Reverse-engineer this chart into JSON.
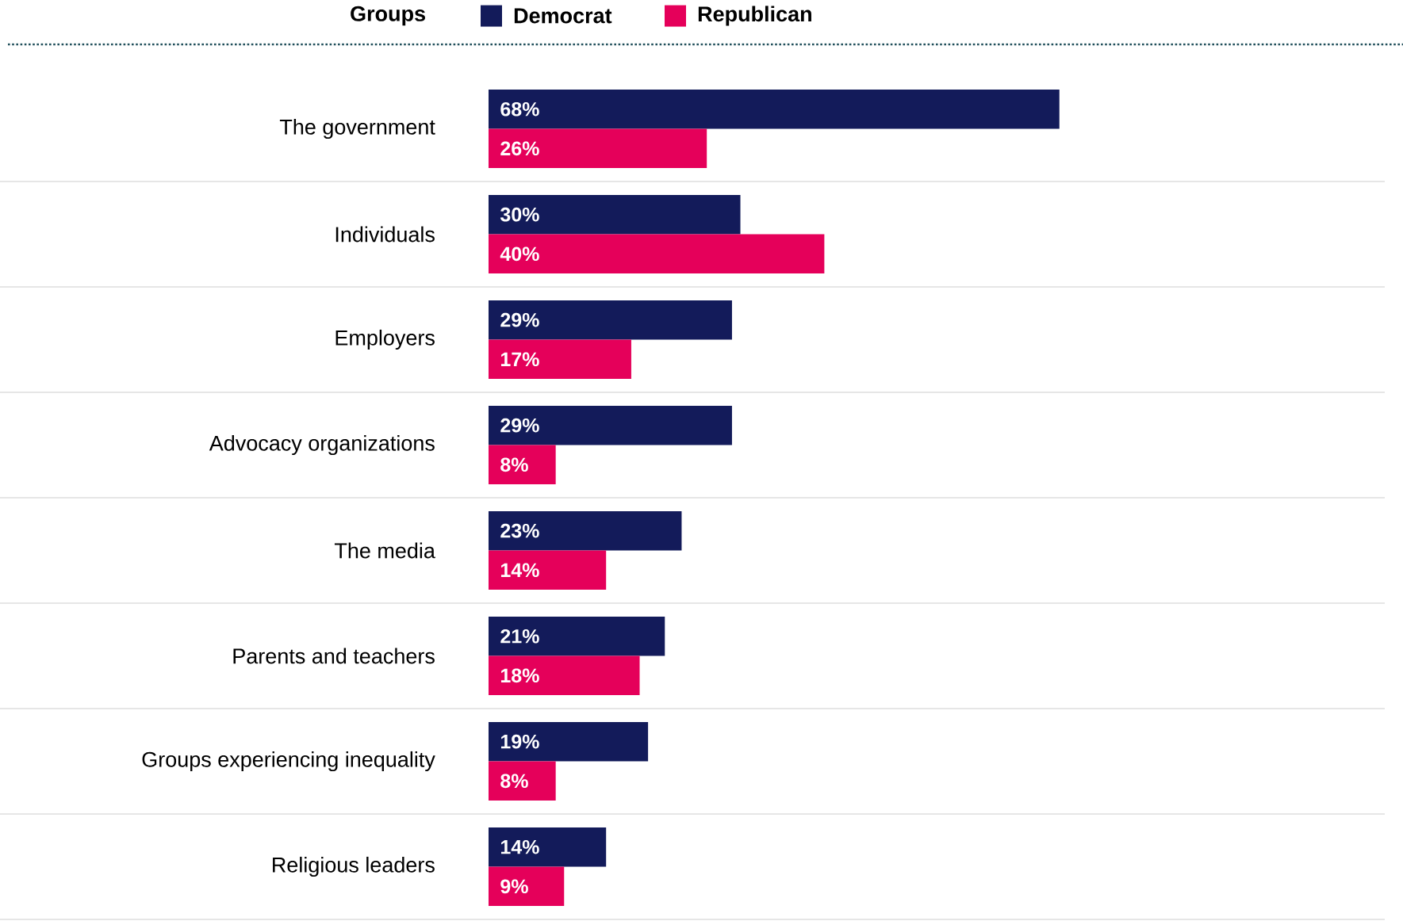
{
  "chart_data": {
    "type": "bar",
    "orientation": "horizontal",
    "legend_title": "Groups",
    "legend": "top",
    "categories": [
      "The government",
      "Individuals",
      "Employers",
      "Advocacy organizations",
      "The media",
      "Parents and teachers",
      "Groups experiencing inequality",
      "Religious leaders"
    ],
    "series": [
      {
        "name": "Democrat",
        "color": "#131b5a",
        "values": [
          68,
          30,
          29,
          29,
          23,
          21,
          19,
          14
        ],
        "value_labels": [
          "68%",
          "30%",
          "29%",
          "29%",
          "23%",
          "21%",
          "19%",
          "14%"
        ]
      },
      {
        "name": "Republican",
        "color": "#e5005a",
        "values": [
          26,
          40,
          17,
          8,
          14,
          18,
          8,
          9
        ],
        "value_labels": [
          "26%",
          "40%",
          "17%",
          "8%",
          "14%",
          "18%",
          "8%",
          "9%"
        ]
      }
    ],
    "grid": "y"
  }
}
